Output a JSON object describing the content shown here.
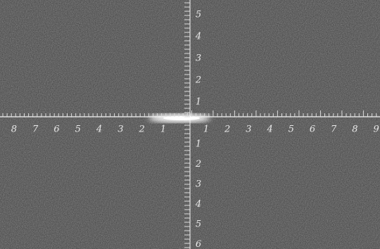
{
  "horizontal_axis": {
    "left_labels": [
      "1",
      "2",
      "3",
      "4",
      "5",
      "6",
      "7",
      "8"
    ],
    "right_labels": [
      "1",
      "2",
      "3",
      "4",
      "5",
      "6",
      "7",
      "8",
      "9"
    ]
  },
  "vertical_axis": {
    "upper_labels": [
      "1",
      "2",
      "3",
      "4",
      "5"
    ],
    "lower_labels": [
      "1",
      "2",
      "3",
      "4",
      "5",
      "6"
    ]
  }
}
